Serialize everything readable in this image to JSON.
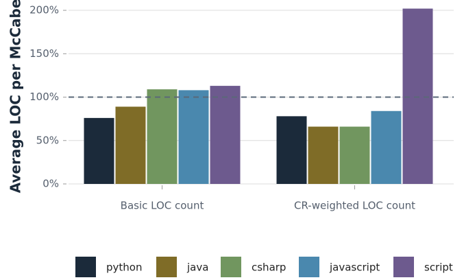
{
  "chart_data": {
    "type": "bar",
    "y_axis_label": "Average LOC per McCabe",
    "categories": [
      "Basic LOC count",
      "CR-weighted LOC count"
    ],
    "series": [
      {
        "name": "python",
        "color": "#1b2a3a",
        "values": [
          76,
          78
        ]
      },
      {
        "name": "java",
        "color": "#7f6c27",
        "values": [
          89,
          66
        ]
      },
      {
        "name": "csharp",
        "color": "#71965f",
        "values": [
          109,
          66
        ]
      },
      {
        "name": "javascript",
        "color": "#4a88ae",
        "values": [
          108,
          84
        ]
      },
      {
        "name": "script",
        "color": "#6d5a8e",
        "values": [
          113,
          202
        ]
      }
    ],
    "reference_line": 100,
    "ylim": [
      0,
      204
    ],
    "yticks": [
      {
        "value": 0,
        "label": "0%"
      },
      {
        "value": 50,
        "label": "50%"
      },
      {
        "value": 100,
        "label": "100%"
      },
      {
        "value": 150,
        "label": "150%"
      },
      {
        "value": 200,
        "label": "200%"
      }
    ],
    "grid": true,
    "legend": "bottom"
  }
}
